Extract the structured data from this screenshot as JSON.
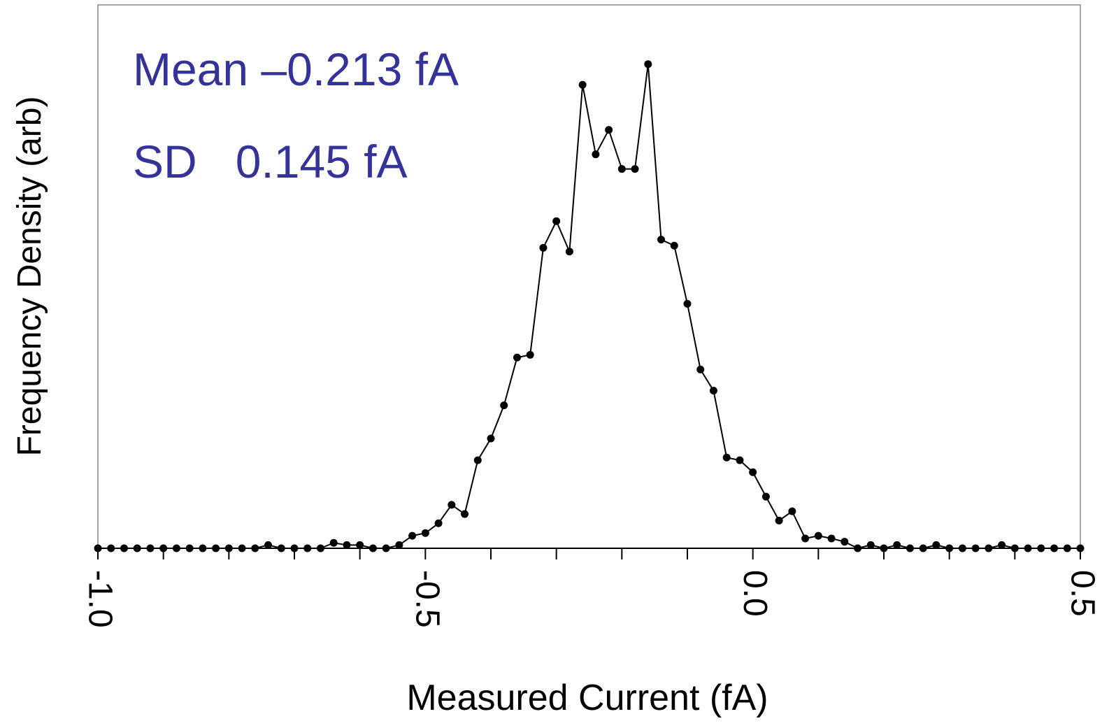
{
  "chart_data": {
    "type": "line",
    "x_label": "Measured Current (fA)",
    "y_label": "Frequency Density (arb)",
    "annotations": [
      "Mean –0.213 fA",
      "SD   0.145 fA"
    ],
    "x": [
      -1.0,
      -0.98,
      -0.96,
      -0.94,
      -0.92,
      -0.9,
      -0.88,
      -0.86,
      -0.84,
      -0.82,
      -0.8,
      -0.78,
      -0.76,
      -0.74,
      -0.72,
      -0.7,
      -0.68,
      -0.66,
      -0.64,
      -0.62,
      -0.6,
      -0.58,
      -0.56,
      -0.54,
      -0.52,
      -0.5,
      -0.48,
      -0.46,
      -0.44,
      -0.42,
      -0.4,
      -0.38,
      -0.36,
      -0.34,
      -0.32,
      -0.3,
      -0.28,
      -0.26,
      -0.24,
      -0.22,
      -0.2,
      -0.18,
      -0.16,
      -0.14,
      -0.12,
      -0.1,
      -0.08,
      -0.06,
      -0.04,
      -0.02,
      0.0,
      0.02,
      0.04,
      0.06,
      0.08,
      0.1,
      0.12,
      0.14,
      0.16,
      0.18,
      0.2,
      0.22,
      0.24,
      0.26,
      0.28,
      0.3,
      0.32,
      0.34,
      0.36,
      0.38,
      0.4,
      0.42,
      0.44,
      0.46,
      0.48,
      0.5
    ],
    "series": [
      {
        "color": "#000000",
        "values": [
          0,
          0,
          0,
          0,
          0,
          0,
          0,
          0,
          0,
          0,
          0,
          0,
          0,
          0.6,
          0,
          0,
          0,
          0,
          1.0,
          0.6,
          0.6,
          0,
          0,
          0.6,
          2.3,
          2.8,
          4.6,
          8.0,
          6.3,
          16.2,
          20.2,
          26.3,
          35.1,
          35.6,
          55.3,
          60.2,
          54.6,
          85.3,
          72.5,
          77.0,
          69.8,
          69.8,
          89.1,
          56.8,
          55.7,
          45.0,
          32.9,
          29.0,
          16.7,
          16.2,
          14.0,
          9.5,
          5.1,
          6.8,
          1.8,
          2.3,
          1.8,
          1.2,
          0,
          0.6,
          0,
          0.6,
          0,
          0,
          0.6,
          0,
          0,
          0,
          0,
          0.6,
          0,
          0,
          0,
          0,
          0,
          0
        ]
      }
    ],
    "xlim": [
      -1.0,
      0.5
    ],
    "xticks": [
      {
        "value": -1.0,
        "label": "-1.0"
      },
      {
        "value": -0.9,
        "label": null
      },
      {
        "value": -0.8,
        "label": null
      },
      {
        "value": -0.7,
        "label": null
      },
      {
        "value": -0.6,
        "label": null
      },
      -0.5,
      {
        "value": -0.4,
        "label": null
      },
      {
        "value": -0.3,
        "label": null
      },
      {
        "value": -0.2,
        "label": null
      },
      {
        "value": -0.1,
        "label": null
      },
      {
        "value": 0.0,
        "label": "0.0"
      },
      {
        "value": 0.1,
        "label": null
      },
      {
        "value": 0.2,
        "label": null
      },
      {
        "value": 0.3,
        "label": null
      },
      {
        "value": 0.4,
        "label": null
      },
      0.5
    ],
    "ylim": [
      0,
      100
    ],
    "annotation_color": "#333399"
  }
}
